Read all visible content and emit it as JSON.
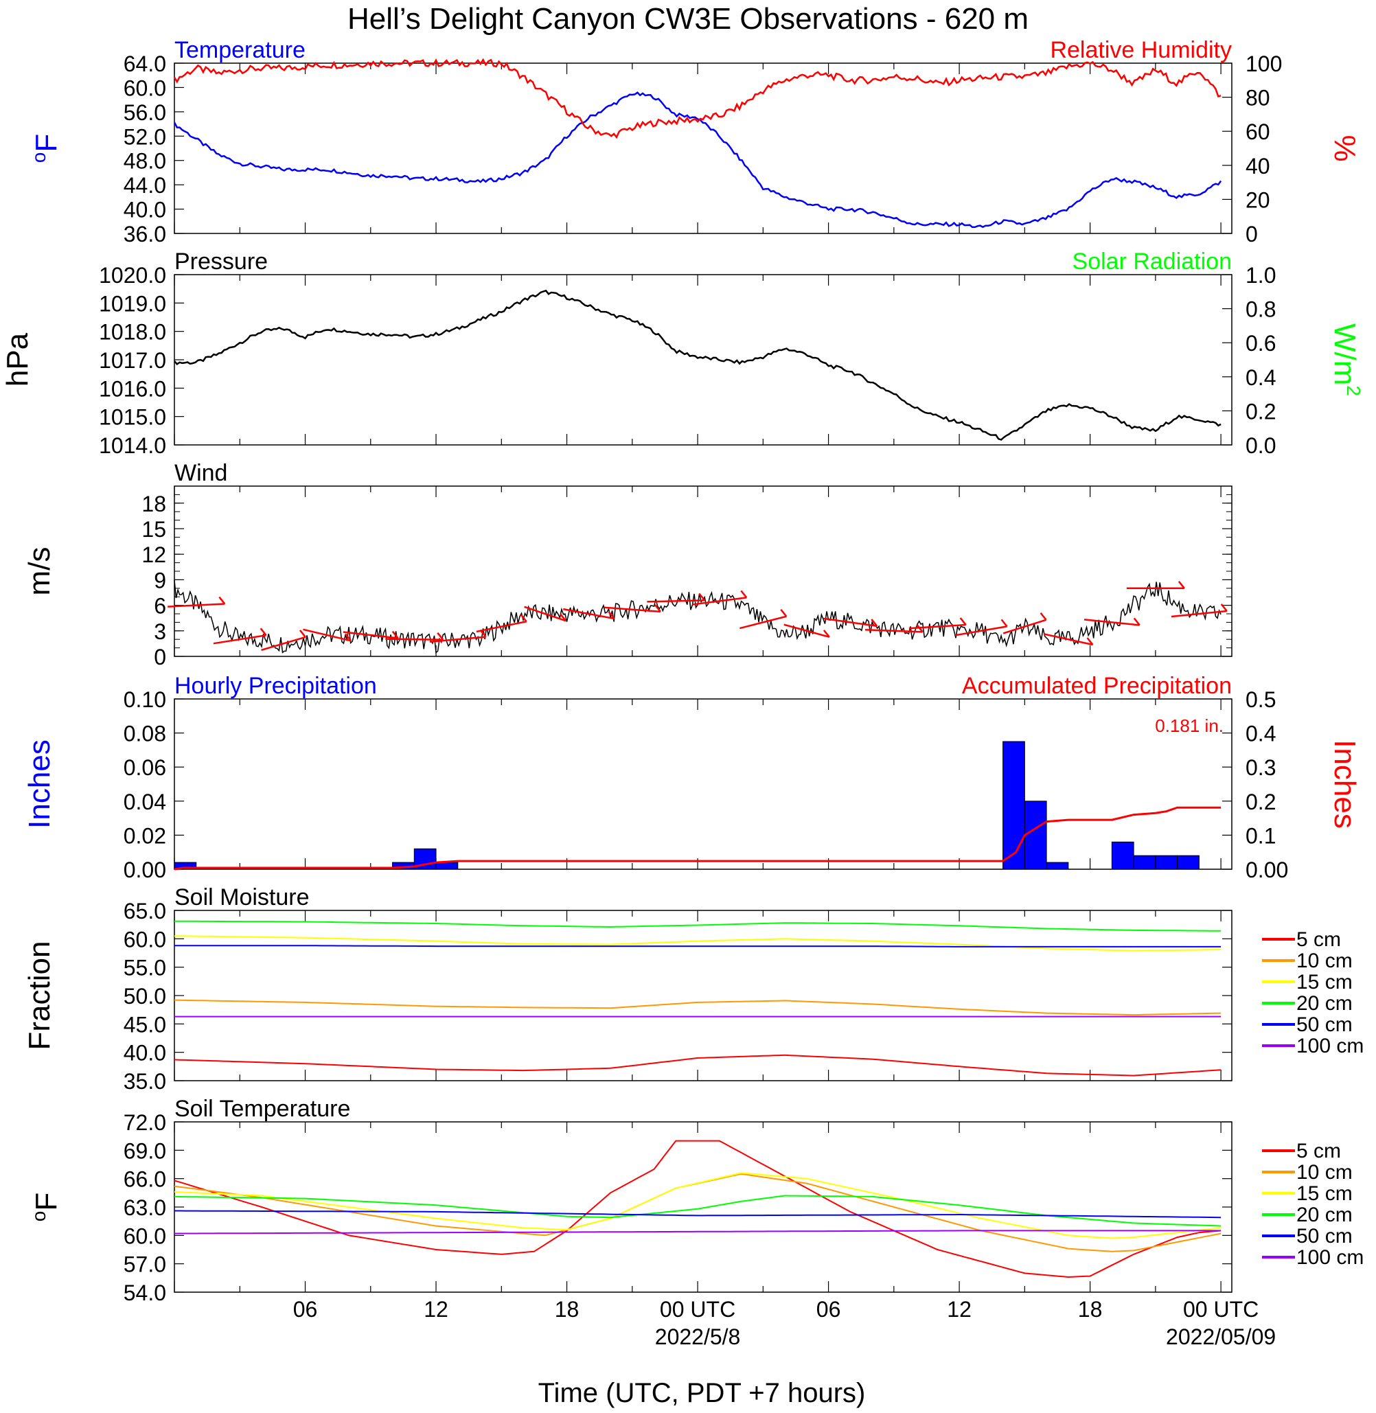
{
  "title": "Hell’s Delight Canyon CW3E Observations - 620 m",
  "xlabel": "Time (UTC, PDT +7 hours)",
  "time_ticks": [
    "06",
    "12",
    "18",
    "00 UTC",
    "06",
    "12",
    "18",
    "00 UTC"
  ],
  "date_labels": [
    "2022/5/8",
    "2022/05/09"
  ],
  "colors": {
    "blue": "#0000ff",
    "red": "#ff0000",
    "green": "#00ff00",
    "black": "#000000",
    "orange": "#ff9900",
    "yellow": "#ffff00",
    "purple": "#9900ff"
  },
  "chart_data": [
    {
      "type": "line",
      "title_left": "Temperature",
      "title_right": "Relative Humidity",
      "ylabel_left": "°F",
      "ylabel_right": "%",
      "ylim_left": [
        36,
        64
      ],
      "ylim_right": [
        0,
        100
      ],
      "yticks_left": [
        "64.0",
        "60.0",
        "56.0",
        "52.0",
        "48.0",
        "44.0",
        "40.0",
        "36.0"
      ],
      "yticks_right": [
        "100",
        "80",
        "60",
        "40",
        "20",
        "0"
      ],
      "x_unit": "hours since 2022-05-07 01:00 UTC",
      "series": [
        {
          "name": "Temperature",
          "axis": "left",
          "color": "#0000ff",
          "x": [
            0,
            1,
            2,
            3,
            4,
            5,
            6,
            7,
            8,
            9,
            10,
            11,
            12,
            13,
            14,
            15,
            16,
            17,
            18,
            19,
            20,
            21,
            22,
            23,
            24,
            25,
            26,
            27,
            28,
            29,
            30,
            31,
            32,
            33,
            34,
            35,
            36,
            37,
            38,
            39,
            40,
            41,
            42,
            43,
            44,
            45,
            46,
            47,
            48
          ],
          "y": [
            54,
            51.5,
            49,
            47.5,
            47,
            46.5,
            46.5,
            46.5,
            46,
            45.5,
            45.5,
            45,
            45,
            44.8,
            44.5,
            45,
            46,
            48,
            52,
            55,
            57,
            59,
            58.5,
            55.5,
            55,
            52,
            48,
            43.5,
            42,
            41,
            40,
            40,
            39.5,
            38.5,
            37.5,
            37.5,
            37.5,
            37,
            38,
            37.5,
            38.5,
            40,
            43,
            45,
            44.5,
            43.5,
            42,
            42.5,
            44.5
          ]
        },
        {
          "name": "Relative Humidity",
          "axis": "right",
          "color": "#ff0000",
          "x": [
            0,
            1,
            2,
            3,
            4,
            5,
            6,
            7,
            8,
            9,
            10,
            11,
            12,
            13,
            14,
            15,
            16,
            17,
            18,
            19,
            20,
            21,
            22,
            23,
            24,
            25,
            26,
            27,
            28,
            29,
            30,
            31,
            32,
            33,
            34,
            35,
            36,
            37,
            38,
            39,
            40,
            41,
            42,
            43,
            44,
            45,
            46,
            47,
            48
          ],
          "y": [
            90,
            97,
            94,
            96,
            97,
            97,
            98,
            99,
            99,
            100,
            100,
            100,
            100,
            100,
            100,
            100,
            92,
            82,
            72,
            62,
            57,
            62,
            65,
            66,
            67,
            69,
            75,
            84,
            90,
            93,
            93,
            90,
            90,
            92,
            91,
            88,
            90,
            91,
            92,
            92,
            94,
            98,
            100,
            96,
            88,
            96,
            88,
            96,
            80
          ]
        }
      ]
    },
    {
      "type": "line",
      "title_left": "Pressure",
      "title_right": "Solar Radiation",
      "ylabel_left": "hPa",
      "ylabel_right": "W/m",
      "ylabel_right_sup": "2",
      "ylim_left": [
        1014,
        1020
      ],
      "ylim_right": [
        0,
        1
      ],
      "yticks_left": [
        "1020.0",
        "1019.0",
        "1018.0",
        "1017.0",
        "1016.0",
        "1015.0",
        "1014.0"
      ],
      "yticks_right": [
        "1.0",
        "0.8",
        "0.6",
        "0.4",
        "0.2",
        "0.0"
      ],
      "x_unit": "hours since 2022-05-07 01:00 UTC",
      "series": [
        {
          "name": "Pressure",
          "axis": "left",
          "color": "#000000",
          "x": [
            0,
            1,
            2,
            3,
            4,
            5,
            6,
            7,
            8,
            9,
            10,
            11,
            12,
            13,
            14,
            15,
            16,
            17,
            18,
            19,
            20,
            21,
            22,
            23,
            24,
            25,
            26,
            27,
            28,
            29,
            30,
            31,
            32,
            33,
            34,
            35,
            36,
            37,
            38,
            39,
            40,
            41,
            42,
            43,
            44,
            45,
            46,
            47,
            48
          ],
          "y": [
            1016.9,
            1016.9,
            1017.2,
            1017.6,
            1018.0,
            1018.1,
            1017.8,
            1018.1,
            1018.0,
            1017.9,
            1017.9,
            1017.8,
            1017.9,
            1018.1,
            1018.4,
            1018.7,
            1019.1,
            1019.4,
            1019.2,
            1018.9,
            1018.6,
            1018.4,
            1018.0,
            1017.3,
            1017.1,
            1017.0,
            1016.9,
            1017.1,
            1017.4,
            1017.2,
            1016.8,
            1016.6,
            1016.2,
            1015.8,
            1015.3,
            1015.0,
            1014.8,
            1014.5,
            1014.2,
            1014.7,
            1015.2,
            1015.4,
            1015.3,
            1015.0,
            1014.6,
            1014.5,
            1015.0,
            1014.9,
            1014.7
          ]
        }
      ]
    },
    {
      "type": "line",
      "title_left": "Wind",
      "ylabel_left": "m/s",
      "ylim_left": [
        0,
        20
      ],
      "yticks_left": [
        "18",
        "15",
        "12",
        "9",
        "6",
        "3",
        "0"
      ],
      "x_unit": "hours since 2022-05-07 01:00 UTC",
      "series": [
        {
          "name": "Wind",
          "axis": "left",
          "color": "#000000",
          "x": [
            0,
            1,
            2,
            3,
            4,
            5,
            6,
            7,
            8,
            9,
            10,
            11,
            12,
            13,
            14,
            15,
            16,
            17,
            18,
            19,
            20,
            21,
            22,
            23,
            24,
            25,
            26,
            27,
            28,
            29,
            30,
            31,
            32,
            33,
            34,
            35,
            36,
            37,
            38,
            39,
            40,
            41,
            42,
            43,
            44,
            45,
            46,
            47,
            48
          ],
          "y": [
            8,
            6,
            3.5,
            2,
            2,
            1.5,
            2,
            2.5,
            2.5,
            2.5,
            2,
            2,
            1.5,
            2,
            2,
            3.5,
            5,
            5,
            5,
            5,
            5,
            5.5,
            6,
            6.5,
            6.5,
            6.5,
            6,
            4,
            2.5,
            3,
            4.5,
            4,
            3.5,
            3,
            3,
            3.5,
            3,
            3,
            1.5,
            3.5,
            2,
            2,
            3,
            4,
            6,
            8,
            6,
            5,
            5
          ]
        }
      ]
    },
    {
      "type": "bar",
      "title_left": "Hourly Precipitation",
      "title_right": "Accumulated Precipitation",
      "annotation": "0.181 in.",
      "ylabel_left": "Inches",
      "ylabel_right": "Inches",
      "ylim_left": [
        0,
        0.1
      ],
      "ylim_right": [
        0,
        0.5
      ],
      "yticks_left": [
        "0.10",
        "0.08",
        "0.06",
        "0.04",
        "0.02",
        "0.00"
      ],
      "yticks_right": [
        "0.5",
        "0.4",
        "0.3",
        "0.2",
        "0.1",
        "0.00"
      ],
      "x_unit": "hours since 2022-05-07 01:00 UTC",
      "series": [
        {
          "name": "Hourly Precipitation",
          "axis": "left",
          "color": "#0000ff",
          "kind": "bar",
          "x": [
            0,
            10,
            11,
            12,
            38,
            39,
            40,
            43,
            44,
            45,
            46
          ],
          "y": [
            0.004,
            0.004,
            0.012,
            0.004,
            0.075,
            0.04,
            0.004,
            0.016,
            0.008,
            0.008,
            0.008
          ]
        },
        {
          "name": "Accumulated Precipitation",
          "axis": "right",
          "color": "#ff0000",
          "kind": "step",
          "x": [
            0,
            0.4,
            10,
            11,
            12,
            13,
            38,
            38.6,
            39,
            40,
            41,
            43,
            44,
            45,
            45.5,
            46,
            48
          ],
          "y": [
            0,
            0.004,
            0.004,
            0.008,
            0.02,
            0.024,
            0.024,
            0.05,
            0.1,
            0.14,
            0.145,
            0.145,
            0.16,
            0.165,
            0.17,
            0.181,
            0.181
          ]
        }
      ]
    },
    {
      "type": "line",
      "title_left": "Soil Moisture",
      "ylabel_left": "Fraction",
      "ylim_left": [
        35,
        65
      ],
      "yticks_left": [
        "65.0",
        "60.0",
        "55.0",
        "50.0",
        "45.0",
        "40.0",
        "35.0"
      ],
      "legend": [
        "5 cm",
        "10 cm",
        "15 cm",
        "20 cm",
        "50 cm",
        "100 cm"
      ],
      "x_unit": "hours since 2022-05-07 01:00 UTC",
      "series": [
        {
          "name": "5 cm",
          "color": "#ff0000",
          "x": [
            0,
            6,
            12,
            16,
            20,
            24,
            28,
            32,
            36,
            40,
            44,
            48
          ],
          "y": [
            38.7,
            38,
            37,
            36.8,
            37.2,
            39,
            39.5,
            38.8,
            37.5,
            36.3,
            35.9,
            36.9
          ]
        },
        {
          "name": "10 cm",
          "color": "#ff9900",
          "x": [
            0,
            6,
            12,
            16,
            20,
            24,
            28,
            32,
            36,
            40,
            44,
            48
          ],
          "y": [
            49.2,
            48.8,
            48.1,
            47.9,
            47.8,
            48.8,
            49.1,
            48.5,
            47.6,
            46.9,
            46.6,
            46.9
          ]
        },
        {
          "name": "15 cm",
          "color": "#ffff00",
          "x": [
            0,
            6,
            12,
            16,
            20,
            24,
            28,
            32,
            36,
            40,
            44,
            48
          ],
          "y": [
            60.5,
            60.2,
            59.6,
            59.1,
            59,
            59.6,
            60,
            59.6,
            59,
            58.3,
            57.9,
            58.1
          ]
        },
        {
          "name": "20 cm",
          "color": "#00ff00",
          "x": [
            0,
            6,
            12,
            16,
            20,
            24,
            28,
            32,
            36,
            40,
            44,
            48
          ],
          "y": [
            63.1,
            63,
            62.7,
            62.3,
            62.1,
            62.4,
            62.8,
            62.7,
            62.3,
            61.8,
            61.5,
            61.4
          ]
        },
        {
          "name": "50 cm",
          "color": "#0000ff",
          "x": [
            0,
            6,
            12,
            16,
            20,
            24,
            28,
            32,
            36,
            40,
            44,
            48
          ],
          "y": [
            58.8,
            58.8,
            58.7,
            58.7,
            58.7,
            58.7,
            58.7,
            58.7,
            58.6,
            58.6,
            58.6,
            58.6
          ]
        },
        {
          "name": "100 cm",
          "color": "#9900ff",
          "x": [
            0,
            6,
            12,
            16,
            20,
            24,
            28,
            32,
            36,
            40,
            44,
            48
          ],
          "y": [
            46.3,
            46.3,
            46.3,
            46.3,
            46.3,
            46.3,
            46.3,
            46.3,
            46.3,
            46.3,
            46.3,
            46.3
          ]
        }
      ]
    },
    {
      "type": "line",
      "title_left": "Soil Temperature",
      "ylabel_left": "°F",
      "ylim_left": [
        54,
        72
      ],
      "yticks_left": [
        "72.0",
        "69.0",
        "66.0",
        "63.0",
        "60.0",
        "57.0",
        "54.0"
      ],
      "legend": [
        "5 cm",
        "10 cm",
        "15 cm",
        "20 cm",
        "50 cm",
        "100 cm"
      ],
      "x_unit": "hours since 2022-05-07 01:00 UTC",
      "series": [
        {
          "name": "5 cm",
          "color": "#ff0000",
          "x": [
            0,
            4,
            8,
            12,
            15,
            16.5,
            18,
            20,
            22,
            23,
            25,
            27,
            31,
            35,
            39,
            41,
            42,
            44,
            46,
            47,
            48
          ],
          "y": [
            65.8,
            63,
            60,
            58.5,
            58,
            58.3,
            60.5,
            64.5,
            67,
            70,
            70,
            67.5,
            62.5,
            58.5,
            56,
            55.6,
            55.7,
            58,
            59.8,
            60.3,
            60.5
          ]
        },
        {
          "name": "10 cm",
          "color": "#ff9900",
          "x": [
            0,
            4,
            8,
            12,
            16,
            17,
            20,
            23,
            26,
            29,
            33,
            37,
            41,
            43,
            44,
            46,
            48
          ],
          "y": [
            65.2,
            64,
            62.5,
            61,
            60.2,
            60,
            61.8,
            65,
            66.5,
            65.5,
            63,
            60.5,
            58.6,
            58.3,
            58.4,
            59.3,
            60.2
          ]
        },
        {
          "name": "15 cm",
          "color": "#ffff00",
          "x": [
            0,
            4,
            8,
            12,
            16,
            18,
            20,
            23,
            26,
            29,
            33,
            37,
            41,
            43,
            44,
            46,
            48
          ],
          "y": [
            64.6,
            64.2,
            63,
            61.8,
            60.8,
            60.6,
            61.8,
            65,
            66.6,
            66,
            64,
            61.8,
            60,
            59.7,
            59.8,
            60.3,
            60.8
          ]
        },
        {
          "name": "20 cm",
          "color": "#00ff00",
          "x": [
            0,
            6,
            12,
            18,
            20,
            24,
            26,
            28,
            32,
            36,
            40,
            44,
            48
          ],
          "y": [
            64.1,
            63.9,
            63.2,
            62,
            61.9,
            62.8,
            63.6,
            64.2,
            64.1,
            63.2,
            62.1,
            61.3,
            61
          ]
        },
        {
          "name": "50 cm",
          "color": "#0000ff",
          "x": [
            0,
            12,
            24,
            36,
            48
          ],
          "y": [
            62.6,
            62.5,
            62.1,
            62.2,
            61.9
          ]
        },
        {
          "name": "100 cm",
          "color": "#9900ff",
          "x": [
            0,
            12,
            24,
            36,
            48
          ],
          "y": [
            60.2,
            60.3,
            60.4,
            60.5,
            60.5
          ]
        }
      ]
    }
  ]
}
